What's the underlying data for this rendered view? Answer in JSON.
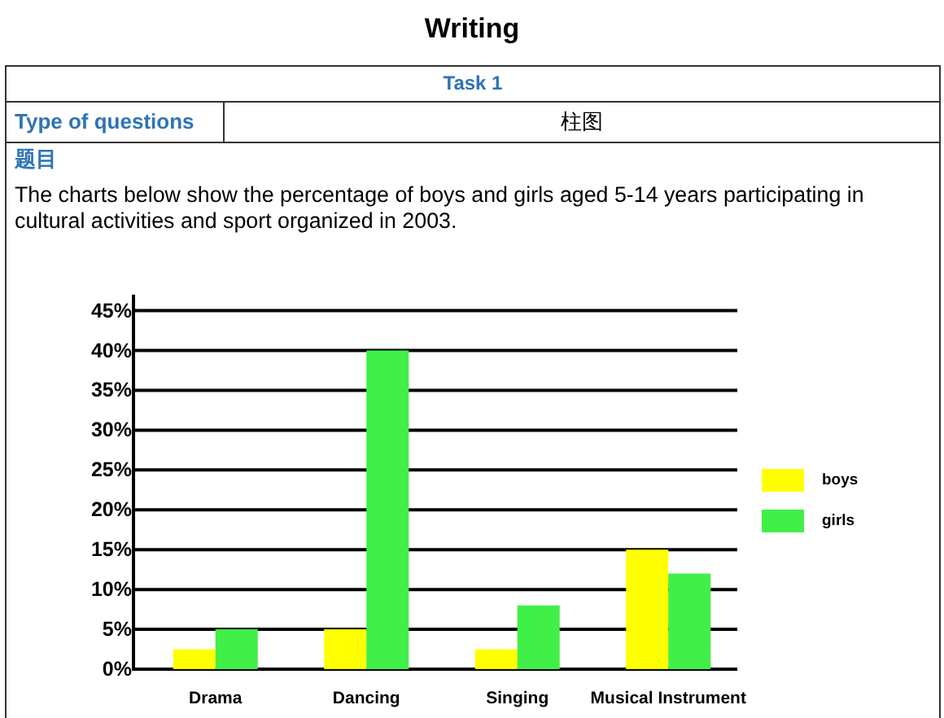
{
  "chart_data": {
    "type": "bar",
    "title": "Writing",
    "subtitle": "Task 1",
    "annotations": [
      "Type of questions",
      "柱图",
      "题目",
      "The charts below show the percentage of boys and girls aged 5-14 years participating in cultural activities and sport organized in 2003."
    ],
    "categories": [
      "Drama",
      "Dancing",
      "Singing",
      "Musical Instrument"
    ],
    "series": [
      {
        "name": "boys",
        "color": "#ffff00",
        "values": [
          2.5,
          5,
          2.5,
          15
        ]
      },
      {
        "name": "girls",
        "color": "#40f048",
        "values": [
          5,
          40,
          8,
          12
        ]
      }
    ],
    "ylim": [
      0,
      47
    ],
    "yticks": [
      {
        "value": 0,
        "label": "0%"
      },
      {
        "value": 5,
        "label": "5%"
      },
      {
        "value": 10,
        "label": "10%"
      },
      {
        "value": 15,
        "label": "15%"
      },
      {
        "value": 20,
        "label": "20%"
      },
      {
        "value": 25,
        "label": "25%"
      },
      {
        "value": 30,
        "label": "30%"
      },
      {
        "value": 35,
        "label": "35%"
      },
      {
        "value": 40,
        "label": "40%"
      },
      {
        "value": 45,
        "label": "45%"
      }
    ],
    "grid": "y",
    "legend": "right"
  }
}
